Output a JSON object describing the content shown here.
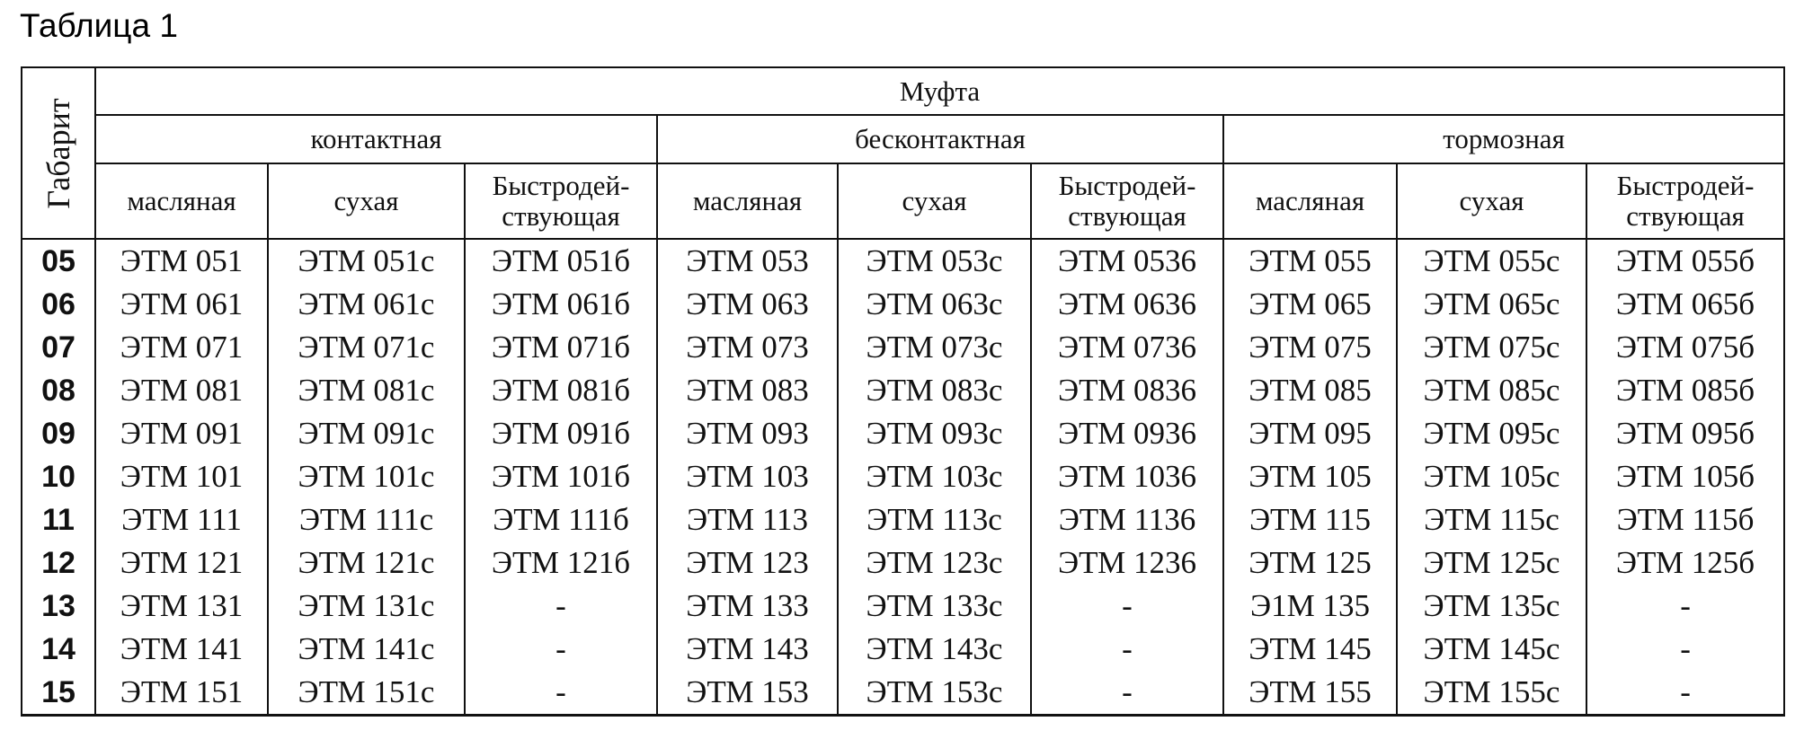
{
  "title": "Таблица 1",
  "table": {
    "gabarit_header": "Габарит",
    "top_header": "Муфта",
    "groups": [
      "контактная",
      "бесконтактная",
      "тормозная"
    ],
    "subcolumns": [
      {
        "label": "масляная"
      },
      {
        "label": "сухая"
      },
      {
        "label": "Быстродей-ствующая",
        "line1": "Быстродей-",
        "line2": "ствующая"
      },
      {
        "label": "масляная"
      },
      {
        "label": "сухая"
      },
      {
        "label": "Быстродей-ствующая",
        "line1": "Быстродей-",
        "line2": "ствующая"
      },
      {
        "label": "масляная"
      },
      {
        "label": "сухая"
      },
      {
        "label": "Быстродей-ствующая",
        "line1": "Быстродей-",
        "line2": "ствующая"
      }
    ],
    "rows": [
      {
        "gabarit": "05",
        "cells": [
          "ЭТМ 051",
          "ЭТМ 051с",
          "ЭТМ 051б",
          "ЭТМ 053",
          "ЭТМ 053с",
          "ЭТМ 0536",
          "ЭТМ 055",
          "ЭТМ 055с",
          "ЭТМ 055б"
        ]
      },
      {
        "gabarit": "06",
        "cells": [
          "ЭТМ 061",
          "ЭТМ 061с",
          "ЭТМ 061б",
          "ЭТМ 063",
          "ЭТМ 063с",
          "ЭТМ 0636",
          "ЭТМ 065",
          "ЭТМ 065с",
          "ЭТМ 065б"
        ]
      },
      {
        "gabarit": "07",
        "cells": [
          "ЭТМ 071",
          "ЭТМ 071с",
          "ЭТМ 071б",
          "ЭТМ 073",
          "ЭТМ 073с",
          "ЭТМ 0736",
          "ЭТМ 075",
          "ЭТМ 075с",
          "ЭТМ 075б"
        ]
      },
      {
        "gabarit": "08",
        "cells": [
          "ЭТМ 081",
          "ЭТМ 081с",
          "ЭТМ 081б",
          "ЭТМ 083",
          "ЭТМ 083с",
          "ЭТМ 0836",
          "ЭТМ 085",
          "ЭТМ 085с",
          "ЭТМ 085б"
        ]
      },
      {
        "gabarit": "09",
        "cells": [
          "ЭТМ 091",
          "ЭТМ 091с",
          "ЭТМ 091б",
          "ЭТМ 093",
          "ЭТМ 093с",
          "ЭТМ 0936",
          "ЭТМ 095",
          "ЭТМ 095с",
          "ЭТМ 095б"
        ]
      },
      {
        "gabarit": "10",
        "cells": [
          "ЭТМ 101",
          "ЭТМ 101с",
          "ЭТМ 101б",
          "ЭТМ 103",
          "ЭТМ 103с",
          "ЭТМ 1036",
          "ЭТМ 105",
          "ЭТМ 105с",
          "ЭТМ 105б"
        ]
      },
      {
        "gabarit": "11",
        "cells": [
          "ЭТМ 111",
          "ЭТМ 111с",
          "ЭТМ 111б",
          "ЭТМ 113",
          "ЭТМ 113с",
          "ЭТМ 1136",
          "ЭТМ 115",
          "ЭТМ 115с",
          "ЭТМ 115б"
        ]
      },
      {
        "gabarit": "12",
        "cells": [
          "ЭТМ 121",
          "ЭТМ 121с",
          "ЭТМ 121б",
          "ЭТМ 123",
          "ЭТМ 123с",
          "ЭТМ 1236",
          "ЭТМ 125",
          "ЭТМ 125с",
          "ЭТМ 125б"
        ]
      },
      {
        "gabarit": "13",
        "cells": [
          "ЭТМ 131",
          "ЭТМ 131с",
          "-",
          "ЭТМ 133",
          "ЭТМ 133с",
          "-",
          "Э1М 135",
          "ЭТМ 135с",
          "-"
        ]
      },
      {
        "gabarit": "14",
        "cells": [
          "ЭТМ 141",
          "ЭТМ 141с",
          "-",
          "ЭТМ 143",
          "ЭТМ 143с",
          "-",
          "ЭТМ 145",
          "ЭТМ 145с",
          "-"
        ]
      },
      {
        "gabarit": "15",
        "cells": [
          "ЭТМ 151",
          "ЭТМ 151с",
          "-",
          "ЭТМ 153",
          "ЭТМ 153с",
          "-",
          "ЭТМ 155",
          "ЭТМ 155с",
          "-"
        ]
      }
    ]
  }
}
